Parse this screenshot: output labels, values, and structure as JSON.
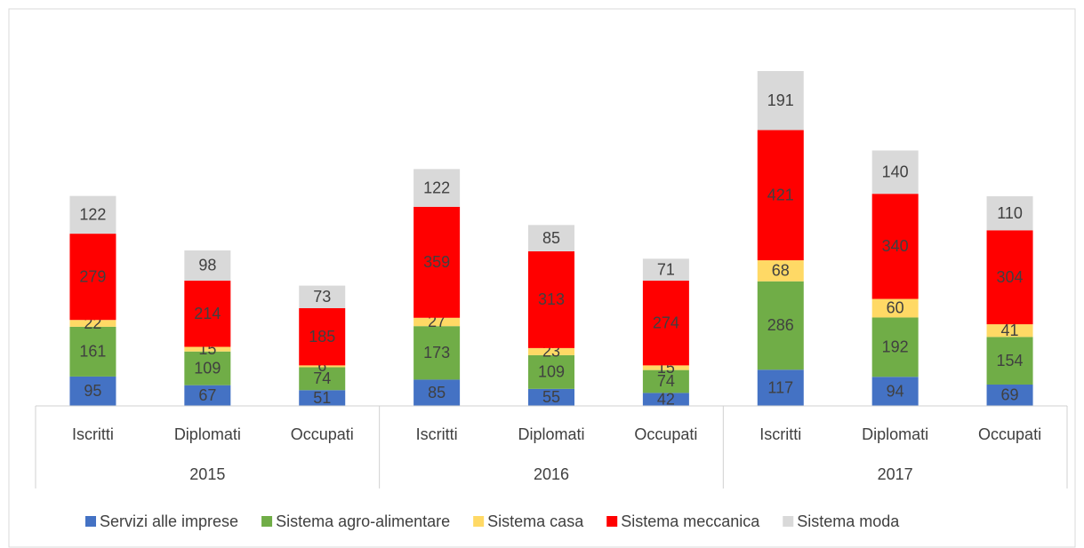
{
  "chart_data": {
    "type": "stacked_bar",
    "categories": [
      "Iscritti",
      "Diplomati",
      "Occupati",
      "Iscritti",
      "Diplomati",
      "Occupati",
      "Iscritti",
      "Diplomati",
      "Occupati"
    ],
    "groups": [
      "2015",
      "2016",
      "2017"
    ],
    "series": [
      {
        "name": "Servizi alle imprese",
        "color": "#4472c4",
        "values": [
          95,
          67,
          51,
          85,
          55,
          42,
          117,
          94,
          69
        ]
      },
      {
        "name": "Sistema agro-alimentare",
        "color": "#70ad47",
        "values": [
          161,
          109,
          74,
          173,
          109,
          74,
          286,
          192,
          154
        ]
      },
      {
        "name": "Sistema casa",
        "color": "#ffd965",
        "values": [
          22,
          15,
          6,
          27,
          23,
          15,
          68,
          60,
          41
        ]
      },
      {
        "name": "Sistema meccanica",
        "color": "#ff0000",
        "values": [
          279,
          214,
          185,
          359,
          313,
          274,
          421,
          340,
          304
        ]
      },
      {
        "name": "Sistema moda",
        "color": "#d9d9d9",
        "values": [
          122,
          98,
          73,
          122,
          85,
          71,
          191,
          140,
          110
        ]
      }
    ],
    "legend": "bottom"
  }
}
